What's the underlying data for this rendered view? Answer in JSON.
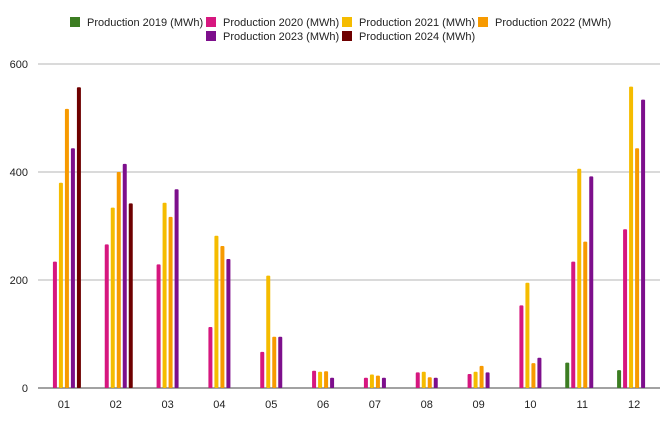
{
  "chart_data": {
    "type": "bar",
    "categories": [
      "01",
      "02",
      "03",
      "04",
      "05",
      "06",
      "07",
      "08",
      "09",
      "10",
      "11",
      "12"
    ],
    "series": [
      {
        "name": "Production 2019 (MWh)",
        "color": "#3c7d22",
        "values": [
          null,
          null,
          null,
          null,
          null,
          null,
          null,
          null,
          null,
          null,
          47,
          33
        ]
      },
      {
        "name": "Production 2020 (MWh)",
        "color": "#d6177f",
        "values": [
          234,
          266,
          229,
          113,
          67,
          32,
          19,
          29,
          26,
          153,
          234,
          294
        ]
      },
      {
        "name": "Production 2021 (MWh)",
        "color": "#f5bc00",
        "values": [
          380,
          334,
          343,
          282,
          208,
          30,
          25,
          30,
          30,
          195,
          406,
          558
        ]
      },
      {
        "name": "Production 2022 (MWh)",
        "color": "#f79a00",
        "values": [
          517,
          400,
          317,
          263,
          95,
          31,
          23,
          20,
          41,
          46,
          271,
          444
        ]
      },
      {
        "name": "Production 2023 (MWh)",
        "color": "#7d0f8c",
        "values": [
          444,
          415,
          368,
          239,
          95,
          19,
          19,
          19,
          29,
          56,
          392,
          534
        ]
      },
      {
        "name": "Production 2024 (MWh)",
        "color": "#6e0000",
        "values": [
          557,
          342,
          null,
          null,
          null,
          null,
          null,
          null,
          null,
          null,
          null,
          null
        ]
      }
    ],
    "yticks": [
      0,
      200,
      400,
      600
    ],
    "ylim": [
      0,
      600
    ],
    "grid": true,
    "legend_position": "top"
  }
}
